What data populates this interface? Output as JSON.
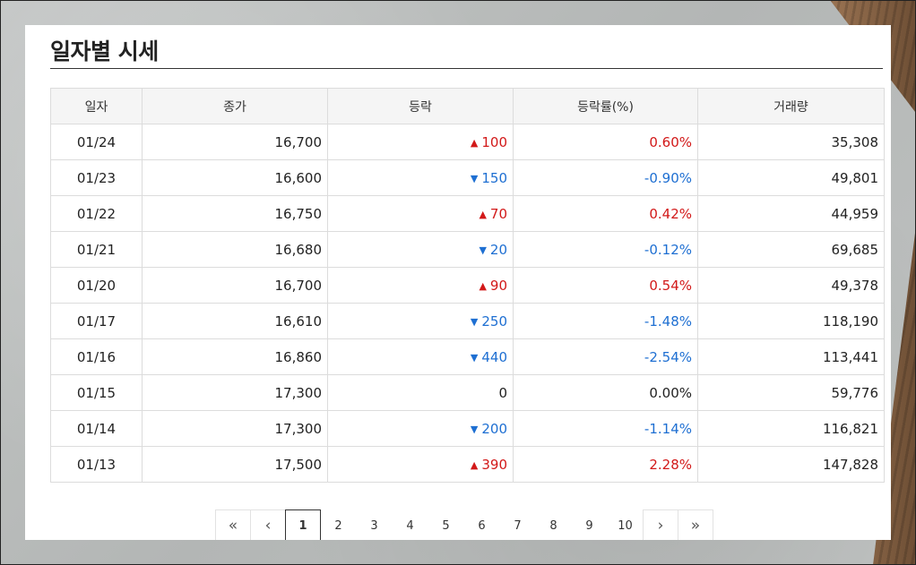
{
  "title": "일자별 시세",
  "columns": [
    "일자",
    "종가",
    "등락",
    "등락률(%)",
    "거래량"
  ],
  "rows": [
    {
      "date": "01/24",
      "close": "16,700",
      "dir": "up",
      "change": "100",
      "rate": "0.60%",
      "volume": "35,308"
    },
    {
      "date": "01/23",
      "close": "16,600",
      "dir": "down",
      "change": "150",
      "rate": "-0.90%",
      "volume": "49,801"
    },
    {
      "date": "01/22",
      "close": "16,750",
      "dir": "up",
      "change": "70",
      "rate": "0.42%",
      "volume": "44,959"
    },
    {
      "date": "01/21",
      "close": "16,680",
      "dir": "down",
      "change": "20",
      "rate": "-0.12%",
      "volume": "69,685"
    },
    {
      "date": "01/20",
      "close": "16,700",
      "dir": "up",
      "change": "90",
      "rate": "0.54%",
      "volume": "49,378"
    },
    {
      "date": "01/17",
      "close": "16,610",
      "dir": "down",
      "change": "250",
      "rate": "-1.48%",
      "volume": "118,190"
    },
    {
      "date": "01/16",
      "close": "16,860",
      "dir": "down",
      "change": "440",
      "rate": "-2.54%",
      "volume": "113,441"
    },
    {
      "date": "01/15",
      "close": "17,300",
      "dir": "flat",
      "change": "0",
      "rate": "0.00%",
      "volume": "59,776"
    },
    {
      "date": "01/14",
      "close": "17,300",
      "dir": "down",
      "change": "200",
      "rate": "-1.14%",
      "volume": "116,821"
    },
    {
      "date": "01/13",
      "close": "17,500",
      "dir": "up",
      "change": "390",
      "rate": "2.28%",
      "volume": "147,828"
    }
  ],
  "direction_icons": {
    "up": "triangle-up-icon",
    "down": "triangle-down-icon"
  },
  "colors": {
    "up": "#d21919",
    "down": "#1e6fd2",
    "flat": "#222222"
  },
  "pagination": {
    "first_icon": "double-chevron-left-icon",
    "prev_icon": "chevron-left-icon",
    "next_icon": "chevron-right-icon",
    "last_icon": "double-chevron-right-icon",
    "pages": [
      "1",
      "2",
      "3",
      "4",
      "5",
      "6",
      "7",
      "8",
      "9",
      "10"
    ],
    "current": "1"
  }
}
